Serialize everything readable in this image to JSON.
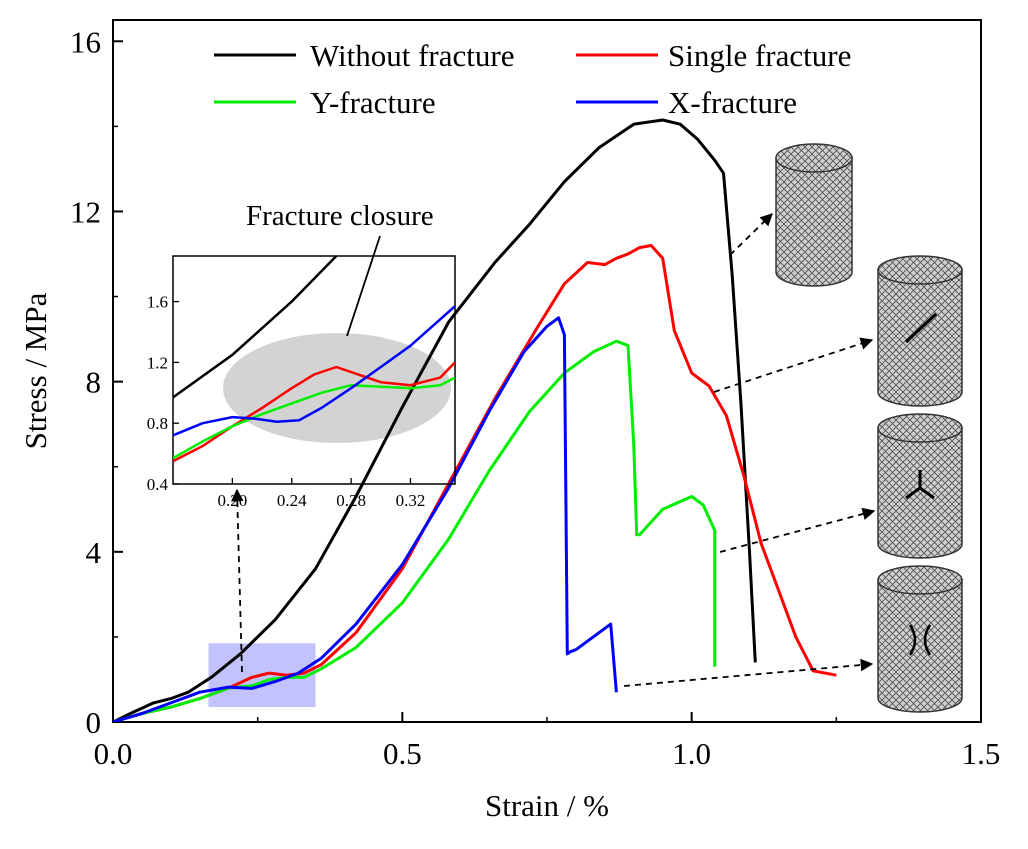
{
  "chart_data": {
    "type": "line",
    "title": "",
    "xlabel": "Strain / %",
    "ylabel": "Stress / MPa",
    "xlim": [
      0.0,
      1.5
    ],
    "ylim": [
      0,
      16.5
    ],
    "xticks": [
      0.0,
      0.5,
      1.0,
      1.5
    ],
    "xtick_labels": [
      "0.0",
      "0.5",
      "1.0",
      "1.5"
    ],
    "yticks": [
      0,
      4,
      8,
      12,
      16
    ],
    "ytick_labels": [
      "0",
      "4",
      "8",
      "12",
      "16"
    ],
    "grid": false,
    "legend_position": "top",
    "series": [
      {
        "name": "Without fracture",
        "color": "#000000",
        "x": [
          0,
          0.03,
          0.07,
          0.1,
          0.13,
          0.17,
          0.22,
          0.28,
          0.35,
          0.42,
          0.5,
          0.58,
          0.66,
          0.72,
          0.78,
          0.84,
          0.9,
          0.95,
          0.98,
          1.01,
          1.04,
          1.055,
          1.07,
          1.085,
          1.1,
          1.11
        ],
        "y": [
          0,
          0.2,
          0.45,
          0.55,
          0.7,
          1.05,
          1.6,
          2.4,
          3.6,
          5.3,
          7.4,
          9.4,
          10.8,
          11.7,
          12.7,
          13.5,
          14.05,
          14.15,
          14.05,
          13.7,
          13.2,
          12.9,
          10.5,
          7.5,
          4.0,
          1.4
        ]
      },
      {
        "name": "Single fracture",
        "color": "#ff0000",
        "x": [
          0,
          0.05,
          0.1,
          0.15,
          0.2,
          0.24,
          0.27,
          0.3,
          0.33,
          0.36,
          0.42,
          0.5,
          0.58,
          0.66,
          0.73,
          0.78,
          0.82,
          0.85,
          0.87,
          0.89,
          0.91,
          0.93,
          0.95,
          0.97,
          1.0,
          1.03,
          1.06,
          1.09,
          1.12,
          1.15,
          1.18,
          1.21,
          1.25
        ],
        "y": [
          0,
          0.2,
          0.35,
          0.55,
          0.8,
          1.05,
          1.15,
          1.1,
          1.15,
          1.35,
          2.1,
          3.6,
          5.6,
          7.6,
          9.2,
          10.3,
          10.8,
          10.75,
          10.9,
          11.0,
          11.15,
          11.2,
          10.9,
          9.2,
          8.2,
          7.9,
          7.2,
          5.8,
          4.2,
          3.1,
          2.0,
          1.2,
          1.1
        ]
      },
      {
        "name": "Y-fracture",
        "color": "#00ee00",
        "x": [
          0,
          0.05,
          0.1,
          0.15,
          0.2,
          0.24,
          0.27,
          0.3,
          0.33,
          0.36,
          0.42,
          0.5,
          0.58,
          0.65,
          0.72,
          0.78,
          0.83,
          0.87,
          0.89,
          0.9,
          0.905,
          0.91,
          0.95,
          1.0,
          1.02,
          1.03,
          1.04,
          1.04
        ],
        "y": [
          0,
          0.2,
          0.35,
          0.55,
          0.8,
          0.85,
          1.0,
          1.05,
          1.05,
          1.25,
          1.75,
          2.8,
          4.3,
          5.9,
          7.3,
          8.2,
          8.7,
          8.95,
          8.85,
          6.5,
          4.4,
          4.4,
          5.0,
          5.3,
          5.1,
          4.8,
          4.5,
          1.3
        ]
      },
      {
        "name": "X-fracture",
        "color": "#0000ff",
        "x": [
          0,
          0.05,
          0.1,
          0.15,
          0.2,
          0.24,
          0.28,
          0.32,
          0.36,
          0.42,
          0.5,
          0.58,
          0.65,
          0.71,
          0.75,
          0.77,
          0.78,
          0.785,
          0.79,
          0.8,
          0.86,
          0.87
        ],
        "y": [
          0,
          0.2,
          0.45,
          0.7,
          0.82,
          0.79,
          0.95,
          1.15,
          1.5,
          2.3,
          3.7,
          5.5,
          7.3,
          8.7,
          9.3,
          9.5,
          9.1,
          1.6,
          1.65,
          1.7,
          2.3,
          0.7
        ]
      }
    ],
    "annotations": [
      "Fracture closure"
    ],
    "inset": {
      "xlim": [
        0.16,
        0.35
      ],
      "ylim": [
        0.4,
        1.9
      ],
      "xticks": [
        0.2,
        0.24,
        0.28,
        0.32
      ],
      "xtick_labels": [
        "0.20",
        "0.24",
        "0.28",
        "0.32"
      ],
      "yticks": [
        0.4,
        0.8,
        1.2,
        1.6
      ],
      "ytick_labels": [
        "0.4",
        "0.8",
        "1.2",
        "1.6"
      ],
      "series": [
        {
          "name": "Without fracture",
          "color": "#000000",
          "x": [
            0.16,
            0.2,
            0.24,
            0.27
          ],
          "y": [
            0.97,
            1.25,
            1.6,
            1.9
          ]
        },
        {
          "name": "Single fracture",
          "color": "#ff0000",
          "x": [
            0.16,
            0.18,
            0.2,
            0.22,
            0.24,
            0.255,
            0.27,
            0.285,
            0.3,
            0.32,
            0.34,
            0.35
          ],
          "y": [
            0.55,
            0.65,
            0.78,
            0.9,
            1.03,
            1.12,
            1.17,
            1.12,
            1.07,
            1.05,
            1.1,
            1.2
          ]
        },
        {
          "name": "Y-fracture",
          "color": "#00ee00",
          "x": [
            0.16,
            0.18,
            0.2,
            0.22,
            0.24,
            0.26,
            0.28,
            0.3,
            0.32,
            0.34,
            0.35
          ],
          "y": [
            0.57,
            0.68,
            0.78,
            0.86,
            0.93,
            1.0,
            1.05,
            1.04,
            1.03,
            1.05,
            1.1
          ]
        },
        {
          "name": "X-fracture",
          "color": "#0000ff",
          "x": [
            0.16,
            0.18,
            0.2,
            0.215,
            0.23,
            0.245,
            0.26,
            0.28,
            0.3,
            0.32,
            0.35
          ],
          "y": [
            0.72,
            0.8,
            0.84,
            0.83,
            0.81,
            0.82,
            0.9,
            1.03,
            1.17,
            1.31,
            1.57
          ]
        }
      ]
    }
  },
  "colors": {
    "ellipse": "#d3d3d3",
    "highlight_box": "#9a9aff"
  },
  "icons": [
    "intact-cylinder-icon",
    "single-fracture-cylinder-icon",
    "y-fracture-cylinder-icon",
    "x-fracture-cylinder-icon"
  ]
}
